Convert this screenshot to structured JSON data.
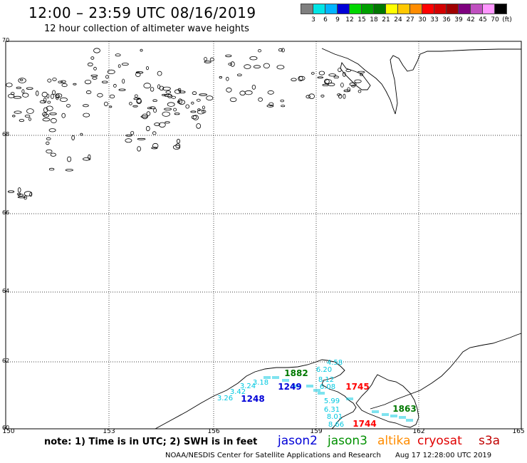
{
  "header": {
    "title": "12:00 – 23:59 UTC 08/16/2019",
    "subtitle": "12 hour collection of altimeter wave heights"
  },
  "color_scale": {
    "unit": "(ft)",
    "labels": [
      "3",
      "6",
      "9",
      "12",
      "15",
      "18",
      "21",
      "24",
      "27",
      "30",
      "33",
      "36",
      "39",
      "42",
      "45",
      "70"
    ],
    "colors": [
      "#7f7f7f",
      "#00e5e5",
      "#00b4ff",
      "#0000d7",
      "#00d700",
      "#00a000",
      "#007800",
      "#ffff00",
      "#ffc800",
      "#ff8c00",
      "#ff0000",
      "#d40000",
      "#a00000",
      "#7f007f",
      "#c050c0",
      "#ff96ff",
      "#000000"
    ]
  },
  "map": {
    "lat_labels": [
      "70",
      "68",
      "66",
      "64",
      "62",
      "60"
    ],
    "lon_labels": [
      "150",
      "153",
      "156",
      "159",
      "162",
      "165"
    ],
    "pass_labels": [
      {
        "text": "1248",
        "color": "#0000d7"
      },
      {
        "text": "1249",
        "color": "#0000d7"
      },
      {
        "text": "1882",
        "color": "#007800"
      },
      {
        "text": "1745",
        "color": "#ff0000"
      },
      {
        "text": "1744",
        "color": "#ff0000"
      },
      {
        "text": "1863",
        "color": "#007800"
      }
    ],
    "swh_values": [
      {
        "text": "3.26"
      },
      {
        "text": "3.42"
      },
      {
        "text": "3.24"
      },
      {
        "text": "3.18"
      },
      {
        "text": "4.58"
      },
      {
        "text": "6.20"
      },
      {
        "text": "8.12"
      },
      {
        "text": "6.08"
      },
      {
        "text": "5.99"
      },
      {
        "text": "6.31"
      },
      {
        "text": "8.01"
      },
      {
        "text": "8.66"
      }
    ]
  },
  "footer": {
    "note": "note: 1) Time is in UTC; 2) SWH is in feet",
    "legend": [
      {
        "label": "jason2",
        "color": "#0000d7"
      },
      {
        "label": "jason3",
        "color": "#009000"
      },
      {
        "label": "altika",
        "color": "#ff8c00"
      },
      {
        "label": "cryosat",
        "color": "#e00000"
      },
      {
        "label": "s3a",
        "color": "#c00000"
      }
    ],
    "credit": "NOAA/NESDIS Center for Satellite Applications and Research",
    "timestamp": "Aug 17 12:28:00 UTC 2019"
  }
}
